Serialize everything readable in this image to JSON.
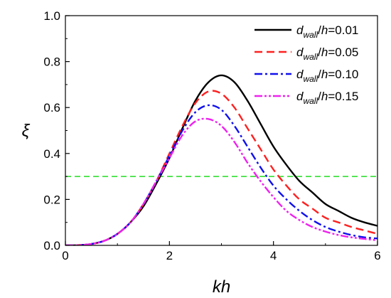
{
  "chart_data": {
    "type": "line",
    "xlabel": "kh",
    "ylabel": "ξ",
    "xlim": [
      0,
      6
    ],
    "ylim": [
      0,
      1.0
    ],
    "x_ticks": [
      "0",
      "2",
      "4",
      "6"
    ],
    "y_ticks": [
      "0.0",
      "0.2",
      "0.4",
      "0.6",
      "0.8",
      "1.0"
    ],
    "legend_position": "top-right",
    "threshold": {
      "value": 0.3,
      "color": "#22dd22"
    },
    "legend_prefix": "d",
    "legend_sub": "wall",
    "legend_mid": "/h",
    "series": [
      {
        "name": "=0.01",
        "color": "#000000",
        "dash": "solid",
        "x": [
          0,
          0.25,
          0.5,
          0.75,
          1.0,
          1.25,
          1.5,
          1.75,
          2.0,
          2.25,
          2.5,
          2.75,
          3.0,
          3.25,
          3.5,
          3.75,
          4.0,
          4.25,
          4.5,
          4.75,
          5.0,
          5.25,
          5.5,
          5.75,
          6.0
        ],
        "values": [
          0,
          0.001,
          0.006,
          0.02,
          0.05,
          0.1,
          0.17,
          0.27,
          0.38,
          0.51,
          0.63,
          0.71,
          0.74,
          0.71,
          0.63,
          0.53,
          0.43,
          0.35,
          0.28,
          0.23,
          0.18,
          0.15,
          0.12,
          0.1,
          0.085
        ]
      },
      {
        "name": "=0.05",
        "color": "#ff2020",
        "dash": "dashed",
        "x": [
          0,
          0.25,
          0.5,
          0.75,
          1.0,
          1.25,
          1.5,
          1.75,
          2.0,
          2.25,
          2.5,
          2.75,
          3.0,
          3.25,
          3.5,
          3.75,
          4.0,
          4.25,
          4.5,
          4.75,
          5.0,
          5.25,
          5.5,
          5.75,
          6.0
        ],
        "values": [
          0,
          0.001,
          0.006,
          0.02,
          0.05,
          0.1,
          0.18,
          0.28,
          0.4,
          0.52,
          0.62,
          0.67,
          0.66,
          0.6,
          0.51,
          0.42,
          0.33,
          0.26,
          0.2,
          0.16,
          0.12,
          0.1,
          0.08,
          0.065,
          0.05
        ]
      },
      {
        "name": "=0.10",
        "color": "#1010ee",
        "dash": "dashdot",
        "x": [
          0,
          0.25,
          0.5,
          0.75,
          1.0,
          1.25,
          1.5,
          1.75,
          2.0,
          2.25,
          2.5,
          2.75,
          3.0,
          3.25,
          3.5,
          3.75,
          4.0,
          4.25,
          4.5,
          4.75,
          5.0,
          5.25,
          5.5,
          5.75,
          6.0
        ],
        "values": [
          0,
          0.001,
          0.006,
          0.02,
          0.05,
          0.1,
          0.18,
          0.28,
          0.39,
          0.5,
          0.58,
          0.61,
          0.59,
          0.52,
          0.43,
          0.34,
          0.26,
          0.2,
          0.15,
          0.11,
          0.08,
          0.06,
          0.045,
          0.035,
          0.03
        ]
      },
      {
        "name": "=0.15",
        "color": "#ee22ee",
        "dash": "dashdotdot",
        "x": [
          0,
          0.25,
          0.5,
          0.75,
          1.0,
          1.25,
          1.5,
          1.75,
          2.0,
          2.25,
          2.5,
          2.75,
          3.0,
          3.25,
          3.5,
          3.75,
          4.0,
          4.25,
          4.5,
          4.75,
          5.0,
          5.25,
          5.5,
          5.75,
          6.0
        ],
        "values": [
          0,
          0.001,
          0.006,
          0.02,
          0.05,
          0.1,
          0.18,
          0.28,
          0.38,
          0.48,
          0.54,
          0.55,
          0.52,
          0.45,
          0.36,
          0.28,
          0.21,
          0.15,
          0.11,
          0.08,
          0.06,
          0.045,
          0.035,
          0.028,
          0.022
        ]
      }
    ]
  }
}
